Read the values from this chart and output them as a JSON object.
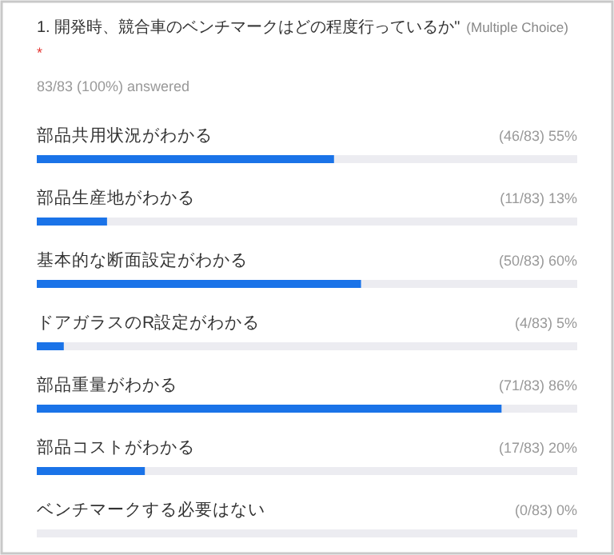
{
  "chart_data": {
    "type": "bar",
    "orientation": "horizontal",
    "title": "1. 開発時、競合車のベンチマークはどの程度行っているか\"",
    "subtitle": "83/83 (100%) answered",
    "annotations": [
      "(Multiple Choice)",
      "*"
    ],
    "categories": [
      "部品共用状況がわかる",
      "部品生産地がわかる",
      "基本的な断面設定がわかる",
      "ドアガラスのR設定がわかる",
      "部品重量がわかる",
      "部品コストがわかる",
      "ベンチマークする必要はない"
    ],
    "values": [
      55,
      13,
      60,
      5,
      86,
      20,
      0
    ],
    "value_labels": [
      "(46/83) 55%",
      "(11/83) 13%",
      "(50/83) 60%",
      "(4/83) 5%",
      "(71/83) 86%",
      "(17/83) 20%",
      "(0/83) 0%"
    ],
    "xlim": [
      0,
      100
    ],
    "color": "#1a73e8"
  }
}
